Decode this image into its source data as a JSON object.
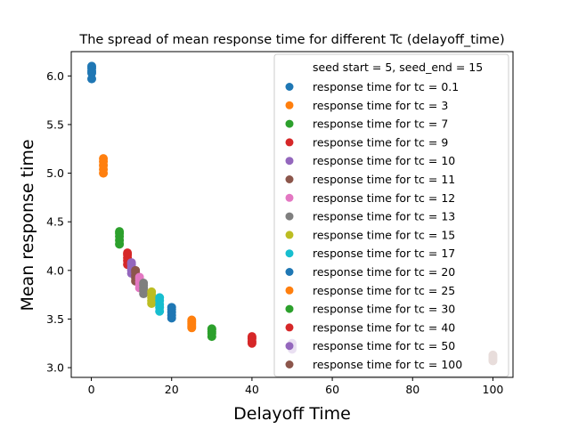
{
  "chart_data": {
    "type": "scatter",
    "title": "The spread of mean response time for different Tc (delayoff_time)",
    "xlabel": "Delayoff Time",
    "ylabel": "Mean response time",
    "xlim": [
      -5,
      105
    ],
    "ylim": [
      2.9,
      6.25
    ],
    "xticks": [
      0,
      20,
      40,
      60,
      80,
      100
    ],
    "yticks": [
      3.0,
      3.5,
      4.0,
      4.5,
      5.0,
      5.5,
      6.0
    ],
    "xtick_labels": [
      "0",
      "20",
      "40",
      "60",
      "80",
      "100"
    ],
    "ytick_labels": [
      "3.0",
      "3.5",
      "4.0",
      "4.5",
      "5.0",
      "5.5",
      "6.0"
    ],
    "grid": false,
    "legend_placement": "top-right",
    "legend_header": "seed start = 5, seed_end = 15",
    "series": [
      {
        "name": "response time for tc = 0.1",
        "color": "#1f77b4",
        "x": 0.1,
        "y": [
          5.97,
          6.03,
          6.05,
          6.08,
          6.1
        ]
      },
      {
        "name": "response time for tc = 3",
        "color": "#ff7f0e",
        "x": 3,
        "y": [
          5.0,
          5.04,
          5.08,
          5.12,
          5.15
        ]
      },
      {
        "name": "response time for tc = 7",
        "color": "#2ca02c",
        "x": 7,
        "y": [
          4.27,
          4.31,
          4.35,
          4.38,
          4.4
        ]
      },
      {
        "name": "response time for tc = 9",
        "color": "#d62728",
        "x": 9,
        "y": [
          4.06,
          4.1,
          4.13,
          4.16,
          4.18
        ]
      },
      {
        "name": "response time for tc = 10",
        "color": "#9467bd",
        "x": 10,
        "y": [
          3.97,
          4.0,
          4.03,
          4.06,
          4.08
        ]
      },
      {
        "name": "response time for tc = 11",
        "color": "#8c564b",
        "x": 11,
        "y": [
          3.89,
          3.92,
          3.95,
          3.98,
          4.0
        ]
      },
      {
        "name": "response time for tc = 12",
        "color": "#e377c2",
        "x": 12,
        "y": [
          3.82,
          3.85,
          3.88,
          3.91,
          3.93
        ]
      },
      {
        "name": "response time for tc = 13",
        "color": "#7f7f7f",
        "x": 13,
        "y": [
          3.76,
          3.79,
          3.82,
          3.85,
          3.87
        ]
      },
      {
        "name": "response time for tc = 15",
        "color": "#bcbd22",
        "x": 15,
        "y": [
          3.66,
          3.69,
          3.72,
          3.75,
          3.78
        ]
      },
      {
        "name": "response time for tc = 17",
        "color": "#17becf",
        "x": 17,
        "y": [
          3.58,
          3.62,
          3.65,
          3.69,
          3.72
        ]
      },
      {
        "name": "response time for tc = 20",
        "color": "#1f77b4",
        "x": 20,
        "y": [
          3.51,
          3.54,
          3.57,
          3.6,
          3.62
        ]
      },
      {
        "name": "response time for tc = 25",
        "color": "#ff7f0e",
        "x": 25,
        "y": [
          3.41,
          3.43,
          3.45,
          3.47,
          3.49
        ]
      },
      {
        "name": "response time for tc = 30",
        "color": "#2ca02c",
        "x": 30,
        "y": [
          3.32,
          3.35,
          3.37,
          3.39,
          3.4
        ]
      },
      {
        "name": "response time for tc = 40",
        "color": "#d62728",
        "x": 40,
        "y": [
          3.25,
          3.27,
          3.3,
          3.32
        ]
      },
      {
        "name": "response time for tc = 50",
        "color": "#9467bd",
        "x": 50,
        "y": [
          3.19,
          3.21,
          3.23,
          3.25
        ]
      },
      {
        "name": "response time for tc = 100",
        "color": "#8c564b",
        "x": 100,
        "y": [
          3.07,
          3.09,
          3.11,
          3.13
        ]
      }
    ]
  }
}
